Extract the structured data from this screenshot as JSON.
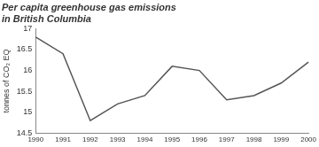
{
  "chart_data": {
    "type": "line",
    "title": [
      "Per capita greenhouse gas emissions",
      "in British Columbia"
    ],
    "ylabel": "tonnes of CO₂ EQ",
    "categories": [
      "1990",
      "1991",
      "1992",
      "1993",
      "1994",
      "1995",
      "1996",
      "1997",
      "1998",
      "1999",
      "2000"
    ],
    "values": [
      16.8,
      16.4,
      14.8,
      15.2,
      15.4,
      16.1,
      16.0,
      15.3,
      15.4,
      15.7,
      16.2
    ],
    "color": "#555555",
    "ylim": [
      14.5,
      17
    ],
    "yticks": [
      14.5,
      15,
      15.5,
      16,
      16.5,
      17
    ],
    "grid": false
  }
}
